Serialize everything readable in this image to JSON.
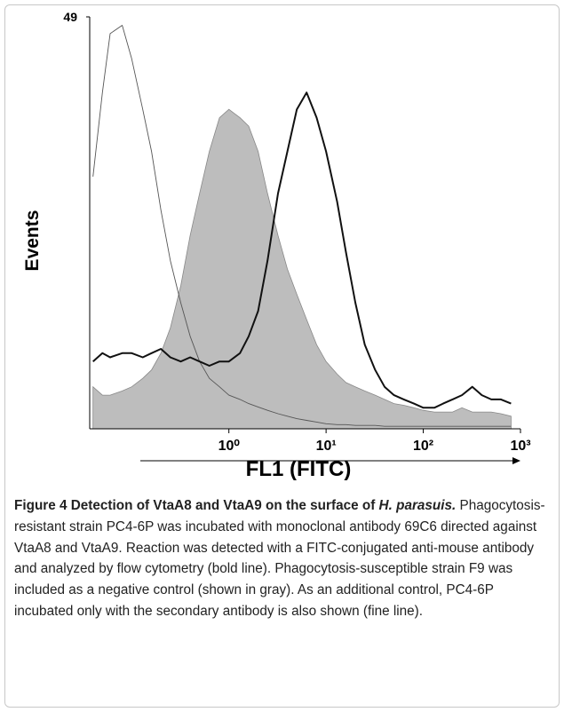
{
  "chart_data": {
    "type": "line",
    "xlabel": "FL1 (FITC)",
    "ylabel": "Events",
    "xscale": "log",
    "xlim": [
      0.037,
      1000
    ],
    "ylim": [
      0,
      49
    ],
    "yticks": [
      49
    ],
    "xticks": [
      {
        "value": 1,
        "label": "10⁰"
      },
      {
        "value": 10,
        "label": "10¹"
      },
      {
        "value": 100,
        "label": "10²"
      },
      {
        "value": 1000,
        "label": "10³"
      }
    ],
    "x": [
      0.04,
      0.05,
      0.06,
      0.08,
      0.1,
      0.13,
      0.16,
      0.2,
      0.25,
      0.32,
      0.4,
      0.5,
      0.63,
      0.8,
      1,
      1.3,
      1.6,
      2,
      2.5,
      3.2,
      4,
      5,
      6.3,
      8,
      10,
      13,
      16,
      20,
      25,
      32,
      40,
      50,
      63,
      80,
      100,
      130,
      160,
      200,
      250,
      320,
      400,
      500,
      630,
      800
    ],
    "series": [
      {
        "color": "#bdbdbd",
        "filled": true,
        "line_width": 0.8,
        "values": [
          5,
          4,
          4,
          4.5,
          5,
          6,
          7,
          9,
          12,
          17,
          23,
          28,
          33,
          37,
          38,
          37,
          36,
          33,
          28,
          23,
          19,
          16,
          13,
          10,
          8,
          6.5,
          5.5,
          5,
          4.5,
          4,
          3.5,
          3,
          2.8,
          2.5,
          2.2,
          2,
          2,
          2,
          2.5,
          2,
          2,
          2,
          1.8,
          1.5
        ]
      },
      {
        "color": "#555555",
        "filled": false,
        "line_width": 0.9,
        "values": [
          30,
          40,
          47,
          48,
          44,
          38,
          33,
          26,
          20,
          15,
          11,
          8,
          6,
          5,
          4,
          3.5,
          3,
          2.6,
          2.2,
          1.8,
          1.5,
          1.2,
          1,
          0.8,
          0.6,
          0.5,
          0.5,
          0.4,
          0.4,
          0.4,
          0.3,
          0.3,
          0.3,
          0.3,
          0.3,
          0.3,
          0.3,
          0.3,
          0.3,
          0.3,
          0.3,
          0.3,
          0.3,
          0.3
        ]
      },
      {
        "color": "#111111",
        "filled": false,
        "line_width": 2,
        "values": [
          8,
          9,
          8.5,
          9,
          9,
          8.5,
          9,
          9.5,
          8.5,
          8,
          8.5,
          8,
          7.5,
          8,
          8,
          9,
          11,
          14,
          20,
          28,
          33,
          38,
          40,
          37,
          33,
          27,
          21,
          15,
          10,
          7,
          5,
          4,
          3.5,
          3,
          2.5,
          2.5,
          3,
          3.5,
          4,
          5,
          4,
          3.5,
          3.5,
          3
        ]
      }
    ]
  },
  "caption": {
    "title": "Figure 4 Detection of VtaA8 and VtaA9 on the surface of",
    "species": "H. parasuis.",
    "text": "Phagocytosis-resistant strain PC4-6P was incubated with monoclonal antibody 69C6 directed against VtaA8 and VtaA9. Reaction was detected with a FITC-conjugated anti-mouse antibody and analyzed by flow cytometry (bold line). Phagocytosis-susceptible strain F9 was included as a negative control (shown in gray). As an additional control, PC4-6P incubated only with the secondary antibody is also shown (fine line)."
  }
}
